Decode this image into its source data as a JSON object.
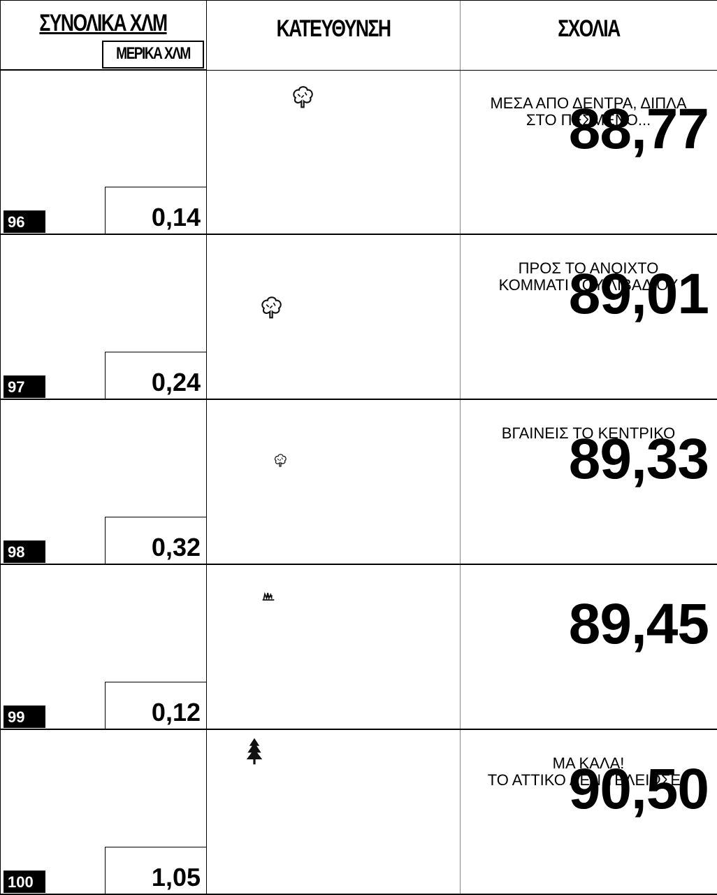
{
  "header": {
    "total_km": "ΣΥΝΟΛΙΚΑ ΧΛΜ",
    "partial_km": "ΜΕΡΙΚΑ ΧΛΜ",
    "direction": "ΚΑΤΕΥΘΥΝΣΗ",
    "comments": "ΣΧΟΛΙΑ"
  },
  "rows": [
    {
      "number": 96,
      "total": "88,77",
      "partial": "0,14",
      "comment": [
        "ΜΕΣΑ ΑΠΟ ΔΕΝΤΡΑ, ΔΙΠΛΑ",
        "ΣΤΟ ΠΕΣΜΕΝΟ..."
      ]
    },
    {
      "number": 97,
      "total": "89,01",
      "partial": "0,24",
      "comment": [
        "ΠΡΟΣ ΤΟ ΑΝΟΙΧΤΟ",
        "ΚΟΜΜΑΤΙ ΤΟΥ ΛΙΒΑΔΙΟΥ"
      ]
    },
    {
      "number": 98,
      "total": "89,33",
      "partial": "0,32",
      "comment": [
        "ΒΓΑΙΝΕΙΣ ΤΟ ΚΕΝΤΡΙΚΟ"
      ]
    },
    {
      "number": 99,
      "total": "89,45",
      "partial": "0,12"
    },
    {
      "number": 100,
      "total": "90,50",
      "partial": "1,05",
      "comment": [
        "ΜΑ ΚΑΛΑ!",
        "ΤΟ ΑΤΤΙΚΟ ΔΕΝ ΤΕΛΕΙΩΣΕ?"
      ]
    }
  ]
}
